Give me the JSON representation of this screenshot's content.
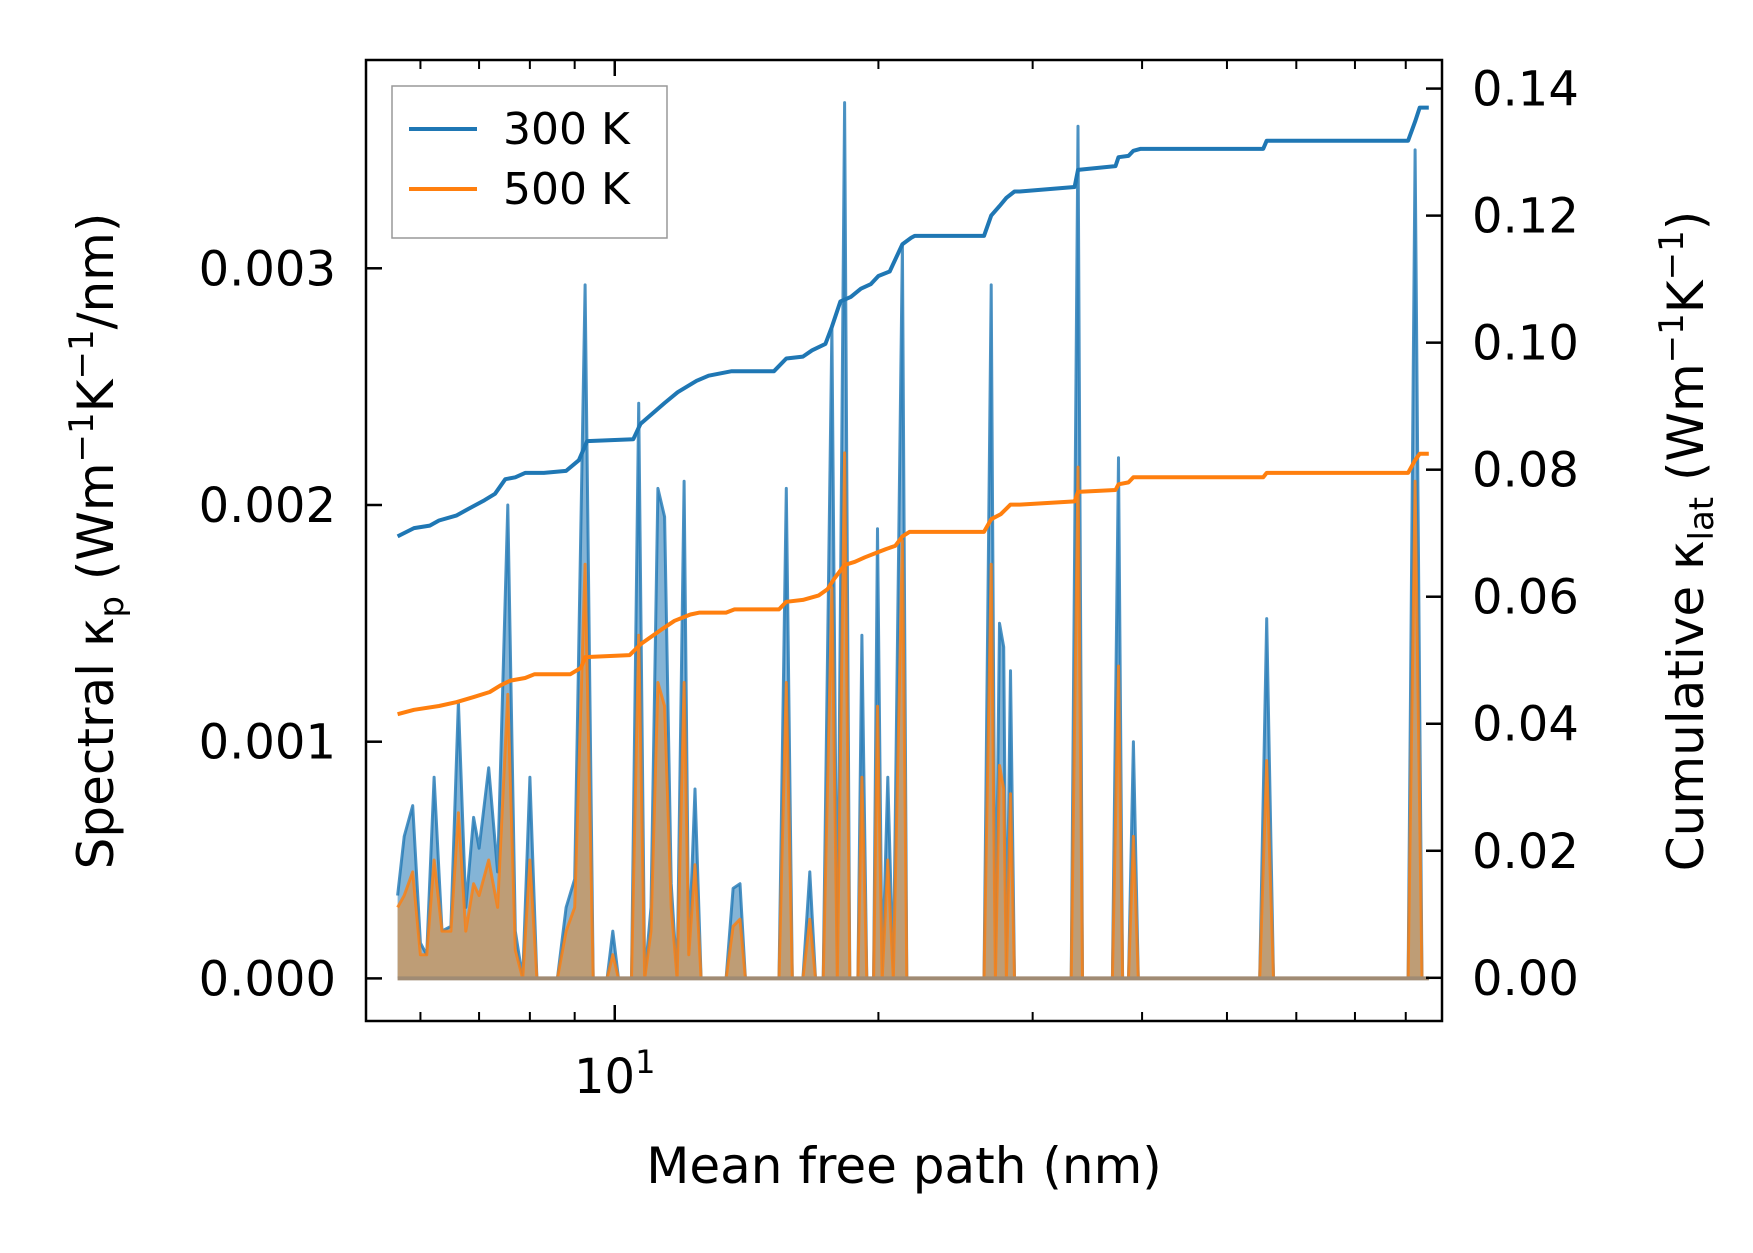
{
  "chart_data": {
    "type": "line",
    "xscale": "log",
    "xlim": [
      5.2,
      88
    ],
    "xlabel": "Mean free path (nm)",
    "xtick_labels": [
      {
        "base": "10",
        "exp": "1",
        "value": 10
      }
    ],
    "left_axis": {
      "label_parts": [
        "Spectral κ",
        "p",
        " (Wm",
        "−1",
        "K",
        "−1",
        "/nm)"
      ],
      "ylim": [
        -0.00018,
        0.00388
      ],
      "ticks": [
        0.0,
        0.001,
        0.002,
        0.003
      ],
      "tick_labels": [
        "0.000",
        "0.001",
        "0.002",
        "0.003"
      ]
    },
    "right_axis": {
      "label_parts": [
        "Cumulative κ",
        "lat",
        " (Wm",
        "−1",
        "K",
        "−1",
        ")"
      ],
      "ylim": [
        -0.0068,
        0.1445
      ],
      "ticks": [
        0.0,
        0.02,
        0.04,
        0.06,
        0.08,
        0.1,
        0.12,
        0.14
      ],
      "tick_labels": [
        "0.00",
        "0.02",
        "0.04",
        "0.06",
        "0.08",
        "0.10",
        "0.12",
        "0.14"
      ]
    },
    "legend": {
      "placement": "top-left",
      "entries": [
        "300 K",
        "500 K"
      ]
    },
    "series_colors": {
      "300 K": "#1f77b4",
      "500 K": "#ff7f0e",
      "overlap": "#c49a6c"
    },
    "spectral_series": [
      {
        "name": "300 K",
        "points": [
          [
            5.65,
            0.00035
          ],
          [
            5.75,
            0.0006
          ],
          [
            5.88,
            0.00073
          ],
          [
            6.0,
            0.00015
          ],
          [
            6.1,
            0.0001
          ],
          [
            6.22,
            0.00085
          ],
          [
            6.35,
            0.0002
          ],
          [
            6.5,
            0.00022
          ],
          [
            6.63,
            0.00117
          ],
          [
            6.76,
            0.0003
          ],
          [
            6.9,
            0.00068
          ],
          [
            7.0,
            0.00055
          ],
          [
            7.18,
            0.00089
          ],
          [
            7.35,
            0.00045
          ],
          [
            7.55,
            0.002
          ],
          [
            7.7,
            0.0002
          ],
          [
            7.85,
            0.0
          ],
          [
            8.0,
            0.00085
          ],
          [
            8.15,
            0.0
          ],
          [
            8.6,
            0.0
          ],
          [
            8.8,
            0.0003
          ],
          [
            9.0,
            0.00042
          ],
          [
            9.25,
            0.00293
          ],
          [
            9.45,
            0.0
          ],
          [
            9.8,
            0.0
          ],
          [
            9.95,
            0.0002
          ],
          [
            10.1,
            0.0
          ],
          [
            10.45,
            0.0
          ],
          [
            10.65,
            0.00243
          ],
          [
            10.82,
            0.0
          ],
          [
            11.0,
            0.0003
          ],
          [
            11.2,
            0.00207
          ],
          [
            11.4,
            0.00195
          ],
          [
            11.6,
            0.0004
          ],
          [
            11.78,
            0.0
          ],
          [
            12.0,
            0.0021
          ],
          [
            12.15,
            0.0001
          ],
          [
            12.35,
            0.0008
          ],
          [
            12.55,
            0.0
          ],
          [
            13.4,
            0.0
          ],
          [
            13.65,
            0.00038
          ],
          [
            13.9,
            0.0004
          ],
          [
            14.1,
            0.0
          ],
          [
            15.4,
            0.0
          ],
          [
            15.7,
            0.00207
          ],
          [
            15.95,
            0.0
          ],
          [
            16.4,
            0.0
          ],
          [
            16.7,
            0.00045
          ],
          [
            16.95,
            0.0
          ],
          [
            17.3,
            0.0
          ],
          [
            17.7,
            0.00275
          ],
          [
            17.95,
            0.0
          ],
          [
            18.3,
            0.0037
          ],
          [
            18.55,
            0.0
          ],
          [
            18.95,
            0.0
          ],
          [
            19.15,
            0.00145
          ],
          [
            19.4,
            0.0
          ],
          [
            19.75,
            0.0
          ],
          [
            19.95,
            0.0019
          ],
          [
            20.2,
            0.0
          ],
          [
            20.5,
            0.00085
          ],
          [
            20.8,
            0.0
          ],
          [
            21.3,
            0.0031
          ],
          [
            21.55,
            0.0
          ],
          [
            22.0,
            0.0
          ],
          [
            26.4,
            0.0
          ],
          [
            26.9,
            0.00293
          ],
          [
            27.2,
            0.0
          ],
          [
            27.5,
            0.0015
          ],
          [
            27.8,
            0.0014
          ],
          [
            28.0,
            0.0
          ],
          [
            28.3,
            0.0013
          ],
          [
            28.6,
            0.0
          ],
          [
            29.0,
            0.0
          ],
          [
            33.2,
            0.0
          ],
          [
            33.8,
            0.0036
          ],
          [
            34.2,
            0.0
          ],
          [
            37.0,
            0.0
          ],
          [
            37.6,
            0.0022
          ],
          [
            38.0,
            0.0
          ],
          [
            38.6,
            0.0
          ],
          [
            39.1,
            0.001
          ],
          [
            39.6,
            0.0
          ],
          [
            54.5,
            0.0
          ],
          [
            55.5,
            0.00152
          ],
          [
            56.5,
            0.0
          ],
          [
            80.5,
            0.0
          ],
          [
            82.0,
            0.0035
          ],
          [
            83.5,
            0.0
          ],
          [
            85.0,
            0.0
          ]
        ]
      },
      {
        "name": "500 K",
        "points": [
          [
            5.65,
            0.0003
          ],
          [
            5.75,
            0.00035
          ],
          [
            5.88,
            0.00045
          ],
          [
            6.0,
            0.0001
          ],
          [
            6.1,
            0.0001
          ],
          [
            6.22,
            0.0005
          ],
          [
            6.35,
            0.0002
          ],
          [
            6.5,
            0.0002
          ],
          [
            6.63,
            0.0007
          ],
          [
            6.76,
            0.0002
          ],
          [
            6.9,
            0.0004
          ],
          [
            7.0,
            0.00035
          ],
          [
            7.18,
            0.0005
          ],
          [
            7.35,
            0.0003
          ],
          [
            7.55,
            0.0012
          ],
          [
            7.7,
            0.00012
          ],
          [
            7.85,
            0.0
          ],
          [
            8.0,
            0.0005
          ],
          [
            8.15,
            0.0
          ],
          [
            8.6,
            0.0
          ],
          [
            8.8,
            0.0002
          ],
          [
            9.0,
            0.0003
          ],
          [
            9.25,
            0.00175
          ],
          [
            9.45,
            0.0
          ],
          [
            9.8,
            0.0
          ],
          [
            9.95,
            0.0001
          ],
          [
            10.1,
            0.0
          ],
          [
            10.45,
            0.0
          ],
          [
            10.65,
            0.00145
          ],
          [
            10.82,
            0.0
          ],
          [
            11.0,
            0.0002
          ],
          [
            11.2,
            0.00125
          ],
          [
            11.4,
            0.00115
          ],
          [
            11.6,
            0.0003
          ],
          [
            11.78,
            0.0
          ],
          [
            12.0,
            0.00125
          ],
          [
            12.15,
            0.0001
          ],
          [
            12.35,
            0.00048
          ],
          [
            12.55,
            0.0
          ],
          [
            13.4,
            0.0
          ],
          [
            13.65,
            0.00022
          ],
          [
            13.9,
            0.00025
          ],
          [
            14.1,
            0.0
          ],
          [
            15.4,
            0.0
          ],
          [
            15.7,
            0.00125
          ],
          [
            15.95,
            0.0
          ],
          [
            16.4,
            0.0
          ],
          [
            16.7,
            0.00025
          ],
          [
            16.95,
            0.0
          ],
          [
            17.3,
            0.0
          ],
          [
            17.7,
            0.00165
          ],
          [
            17.95,
            0.0
          ],
          [
            18.3,
            0.00222
          ],
          [
            18.55,
            0.0
          ],
          [
            18.95,
            0.0
          ],
          [
            19.15,
            0.00085
          ],
          [
            19.4,
            0.0
          ],
          [
            19.75,
            0.0
          ],
          [
            19.95,
            0.00115
          ],
          [
            20.2,
            0.0
          ],
          [
            20.5,
            0.0005
          ],
          [
            20.8,
            0.0
          ],
          [
            21.3,
            0.00185
          ],
          [
            21.55,
            0.0
          ],
          [
            22.0,
            0.0
          ],
          [
            26.4,
            0.0
          ],
          [
            26.9,
            0.00175
          ],
          [
            27.2,
            0.0
          ],
          [
            27.5,
            0.0009
          ],
          [
            27.8,
            0.0008
          ],
          [
            28.0,
            0.0
          ],
          [
            28.3,
            0.00078
          ],
          [
            28.6,
            0.0
          ],
          [
            29.0,
            0.0
          ],
          [
            33.2,
            0.0
          ],
          [
            33.8,
            0.00216
          ],
          [
            34.2,
            0.0
          ],
          [
            37.0,
            0.0
          ],
          [
            37.6,
            0.00132
          ],
          [
            38.0,
            0.0
          ],
          [
            38.6,
            0.0
          ],
          [
            39.1,
            0.0006
          ],
          [
            39.6,
            0.0
          ],
          [
            54.5,
            0.0
          ],
          [
            55.5,
            0.00092
          ],
          [
            56.5,
            0.0
          ],
          [
            80.5,
            0.0
          ],
          [
            82.0,
            0.0021
          ],
          [
            83.5,
            0.0
          ],
          [
            85.0,
            0.0
          ]
        ]
      }
    ],
    "cumulative_series": [
      {
        "name": "300 K",
        "points": [
          [
            5.65,
            0.0695
          ],
          [
            5.9,
            0.0708
          ],
          [
            6.15,
            0.0712
          ],
          [
            6.3,
            0.072
          ],
          [
            6.6,
            0.0728
          ],
          [
            6.8,
            0.0738
          ],
          [
            7.1,
            0.0752
          ],
          [
            7.3,
            0.0762
          ],
          [
            7.5,
            0.0785
          ],
          [
            7.7,
            0.0788
          ],
          [
            7.9,
            0.0795
          ],
          [
            8.3,
            0.0795
          ],
          [
            8.8,
            0.0798
          ],
          [
            9.1,
            0.0815
          ],
          [
            9.3,
            0.0845
          ],
          [
            10.5,
            0.0848
          ],
          [
            10.7,
            0.0872
          ],
          [
            11.4,
            0.0905
          ],
          [
            11.8,
            0.0922
          ],
          [
            12.4,
            0.094
          ],
          [
            12.8,
            0.0948
          ],
          [
            13.6,
            0.0955
          ],
          [
            15.2,
            0.0955
          ],
          [
            15.7,
            0.0975
          ],
          [
            16.4,
            0.0978
          ],
          [
            16.8,
            0.0988
          ],
          [
            17.4,
            0.0998
          ],
          [
            17.7,
            0.1025
          ],
          [
            18.1,
            0.1065
          ],
          [
            18.6,
            0.1072
          ],
          [
            19.1,
            0.1085
          ],
          [
            19.6,
            0.1092
          ],
          [
            20.0,
            0.1105
          ],
          [
            20.6,
            0.1112
          ],
          [
            21.3,
            0.1155
          ],
          [
            21.8,
            0.1165
          ],
          [
            22.0,
            0.1168
          ],
          [
            26.4,
            0.1168
          ],
          [
            26.9,
            0.12
          ],
          [
            27.5,
            0.1215
          ],
          [
            28.0,
            0.1228
          ],
          [
            28.6,
            0.1238
          ],
          [
            29.0,
            0.1238
          ],
          [
            33.5,
            0.1245
          ],
          [
            33.8,
            0.1272
          ],
          [
            37.3,
            0.1278
          ],
          [
            37.6,
            0.1292
          ],
          [
            38.6,
            0.1294
          ],
          [
            39.1,
            0.1302
          ],
          [
            39.8,
            0.1305
          ],
          [
            55.0,
            0.1305
          ],
          [
            55.5,
            0.1318
          ],
          [
            80.5,
            0.1318
          ],
          [
            82.0,
            0.1348
          ],
          [
            83.0,
            0.137
          ],
          [
            85.0,
            0.137
          ]
        ]
      },
      {
        "name": "500 K",
        "points": [
          [
            5.65,
            0.0415
          ],
          [
            5.9,
            0.0422
          ],
          [
            6.3,
            0.0428
          ],
          [
            6.6,
            0.0434
          ],
          [
            6.9,
            0.0442
          ],
          [
            7.2,
            0.045
          ],
          [
            7.4,
            0.046
          ],
          [
            7.6,
            0.0468
          ],
          [
            7.9,
            0.0472
          ],
          [
            8.1,
            0.0478
          ],
          [
            8.9,
            0.0478
          ],
          [
            9.15,
            0.0488
          ],
          [
            9.25,
            0.0505
          ],
          [
            10.4,
            0.0508
          ],
          [
            10.7,
            0.0525
          ],
          [
            11.3,
            0.0548
          ],
          [
            11.7,
            0.0562
          ],
          [
            12.2,
            0.0572
          ],
          [
            12.5,
            0.0575
          ],
          [
            13.4,
            0.0575
          ],
          [
            13.7,
            0.058
          ],
          [
            15.4,
            0.058
          ],
          [
            15.7,
            0.0592
          ],
          [
            16.4,
            0.0595
          ],
          [
            17.1,
            0.0602
          ],
          [
            17.5,
            0.0612
          ],
          [
            17.8,
            0.0628
          ],
          [
            18.3,
            0.065
          ],
          [
            18.8,
            0.0655
          ],
          [
            19.3,
            0.0662
          ],
          [
            19.8,
            0.0668
          ],
          [
            20.4,
            0.0675
          ],
          [
            20.9,
            0.068
          ],
          [
            21.3,
            0.0695
          ],
          [
            21.7,
            0.0702
          ],
          [
            26.4,
            0.0702
          ],
          [
            26.9,
            0.0722
          ],
          [
            27.6,
            0.073
          ],
          [
            28.3,
            0.0745
          ],
          [
            29.0,
            0.0745
          ],
          [
            33.5,
            0.075
          ],
          [
            33.8,
            0.0765
          ],
          [
            37.3,
            0.0768
          ],
          [
            37.6,
            0.0777
          ],
          [
            38.6,
            0.078
          ],
          [
            39.1,
            0.0788
          ],
          [
            55.0,
            0.0788
          ],
          [
            55.5,
            0.0795
          ],
          [
            80.5,
            0.0795
          ],
          [
            82.0,
            0.0815
          ],
          [
            83.0,
            0.0825
          ],
          [
            85.0,
            0.0825
          ]
        ]
      }
    ]
  }
}
